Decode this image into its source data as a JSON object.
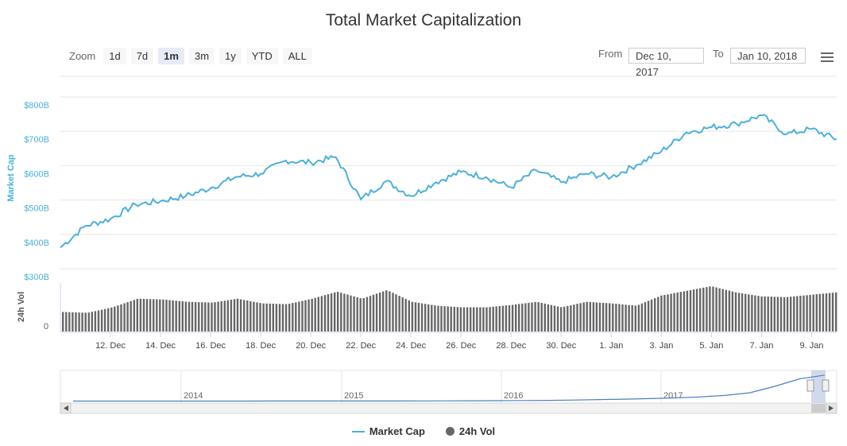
{
  "title": "Total Market Capitalization",
  "zoom": {
    "label": "Zoom",
    "buttons": [
      "1d",
      "7d",
      "1m",
      "3m",
      "1y",
      "YTD",
      "ALL"
    ],
    "active": "1m"
  },
  "range": {
    "from_label": "From",
    "from_value": "Dec 10, 2017",
    "to_label": "To",
    "to_value": "Jan 10, 2018"
  },
  "menu_icon": "hamburger-icon",
  "colors": {
    "market_cap": "#4db0d9",
    "volume": "#666666",
    "navigator_line": "#4a7fc0"
  },
  "legend": {
    "market_cap": "Market Cap",
    "volume": "24h Vol"
  },
  "chart_data": {
    "type": "line",
    "title": "Total Market Capitalization",
    "x_range": [
      "2017-12-10",
      "2018-01-10"
    ],
    "x_ticks": [
      "12. Dec",
      "14. Dec",
      "16. Dec",
      "18. Dec",
      "20. Dec",
      "22. Dec",
      "24. Dec",
      "26. Dec",
      "28. Dec",
      "30. Dec",
      "1. Jan",
      "3. Jan",
      "5. Jan",
      "7. Jan",
      "9. Jan"
    ],
    "ylabel": "Market Cap",
    "y_ticks": [
      "$300B",
      "$400B",
      "$500B",
      "$600B",
      "$700B",
      "$800B"
    ],
    "ylim": [
      300,
      800
    ],
    "y_unit": "B USD",
    "grid": true,
    "series": [
      {
        "name": "Market Cap",
        "x": [
          "2017-12-10",
          "2017-12-11",
          "2017-12-12",
          "2017-12-13",
          "2017-12-14",
          "2017-12-15",
          "2017-12-16",
          "2017-12-17",
          "2017-12-18",
          "2017-12-19",
          "2017-12-20",
          "2017-12-21",
          "2017-12-22",
          "2017-12-23",
          "2017-12-24",
          "2017-12-25",
          "2017-12-26",
          "2017-12-27",
          "2017-12-28",
          "2017-12-29",
          "2017-12-30",
          "2017-12-31",
          "2018-01-01",
          "2018-01-02",
          "2018-01-03",
          "2018-01-04",
          "2018-01-05",
          "2018-01-06",
          "2018-01-07",
          "2018-01-08",
          "2018-01-09",
          "2018-01-10"
        ],
        "values": [
          385,
          448,
          468,
          510,
          520,
          535,
          558,
          590,
          600,
          638,
          632,
          648,
          525,
          578,
          535,
          575,
          605,
          590,
          560,
          610,
          575,
          600,
          590,
          625,
          665,
          720,
          735,
          745,
          770,
          715,
          730,
          700
        ]
      }
    ],
    "volume": {
      "name": "24h Vol",
      "y_ticks": [
        "0"
      ],
      "ylabel": "24h Vol",
      "values": [
        25,
        24,
        31,
        42,
        41,
        38,
        37,
        42,
        36,
        35,
        42,
        51,
        42,
        53,
        38,
        33,
        31,
        31,
        34,
        38,
        31,
        38,
        36,
        33,
        46,
        52,
        58,
        50,
        45,
        44,
        47,
        50
      ]
    },
    "navigator": {
      "x_labels": [
        "2014",
        "2015",
        "2016",
        "2017"
      ],
      "values": [
        10,
        10,
        10,
        10,
        11,
        11,
        11,
        11,
        12,
        12,
        12,
        12,
        12,
        13,
        14,
        16,
        18,
        22,
        26,
        30,
        38,
        50,
        60,
        75,
        95,
        120,
        160,
        230,
        400,
        600,
        700
      ]
    }
  }
}
